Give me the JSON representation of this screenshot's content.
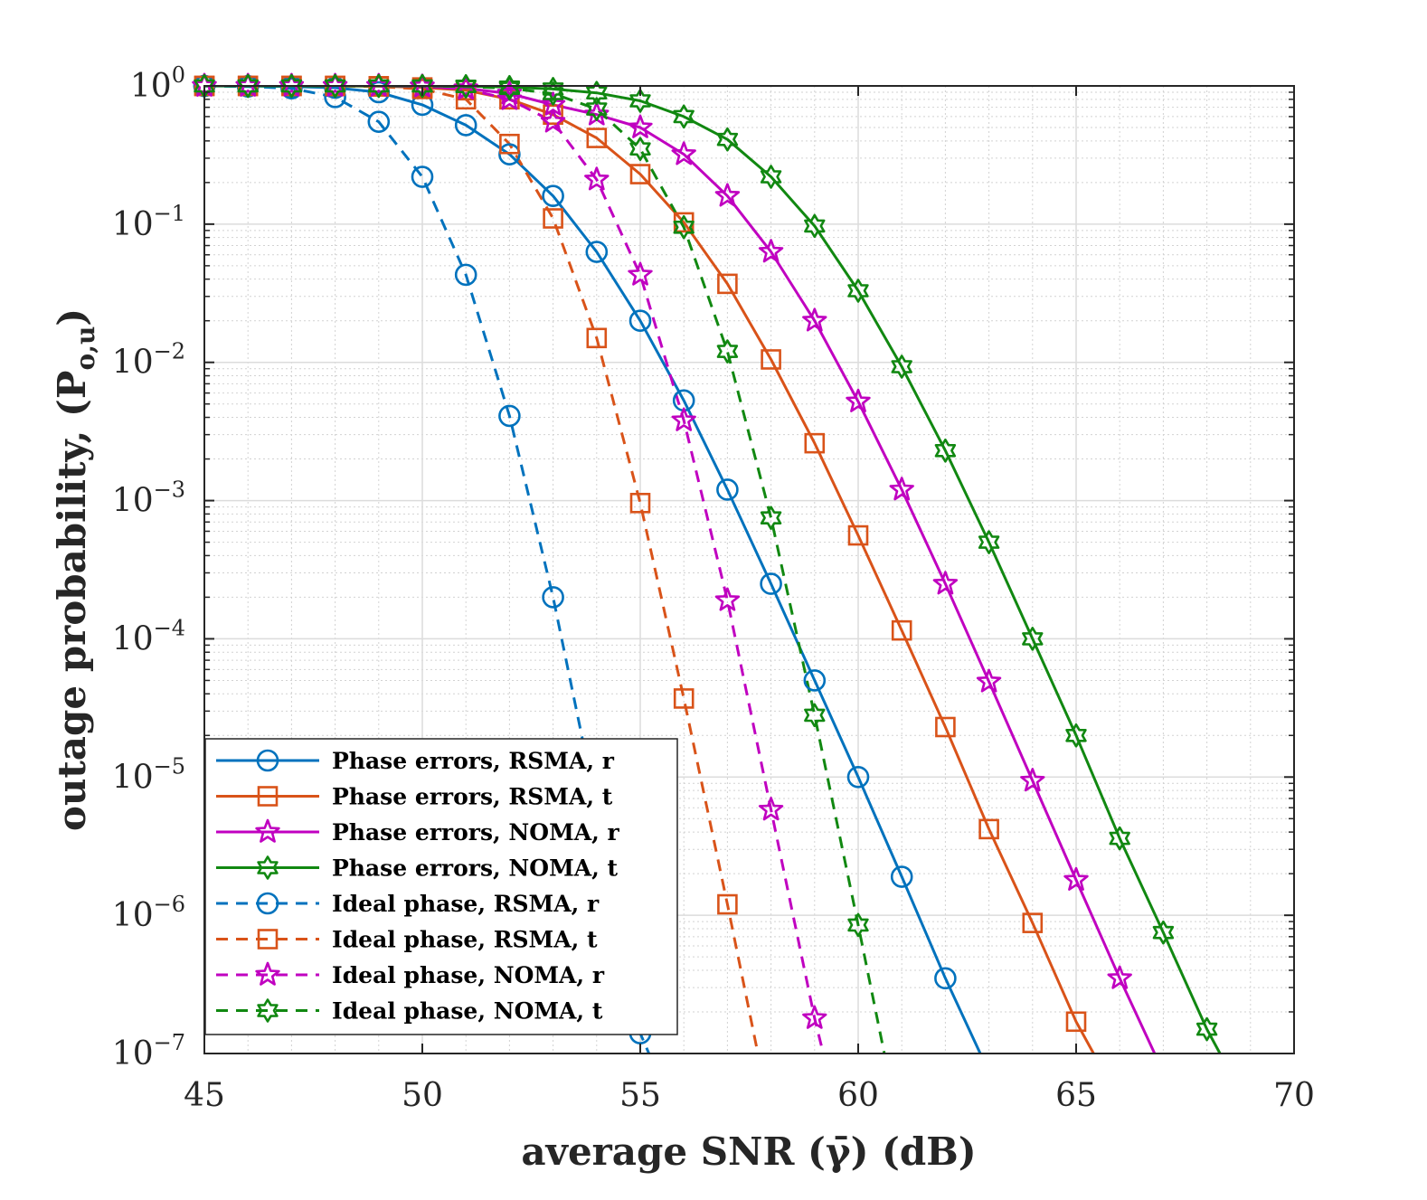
{
  "chart_data": {
    "type": "line",
    "xlabel": "average SNR (γ̄) (dB)",
    "ylabel": "outage probability, (P",
    "ylabel_sub": "o,u",
    "ylabel_close": ")",
    "xlim": [
      45,
      70
    ],
    "ylim": [
      1e-07,
      1
    ],
    "y_scale": "log",
    "grid": true,
    "minor_grid": true,
    "legend_position": "bottom-left",
    "x_ticks": [
      "45",
      "50",
      "55",
      "60",
      "65",
      "70"
    ],
    "y_ticks": [
      {
        "base": "10",
        "exp": "0"
      },
      {
        "base": "10",
        "exp": "−1"
      },
      {
        "base": "10",
        "exp": "−2"
      },
      {
        "base": "10",
        "exp": "−3"
      },
      {
        "base": "10",
        "exp": "−4"
      },
      {
        "base": "10",
        "exp": "−5"
      },
      {
        "base": "10",
        "exp": "−6"
      },
      {
        "base": "10",
        "exp": "−7"
      }
    ],
    "series": [
      {
        "name": "Phase errors, RSMA, r",
        "color": "#0072BD",
        "dash": "solid",
        "marker": "circle",
        "x": [
          45,
          46,
          47,
          48,
          49,
          50,
          51,
          52,
          53,
          54,
          55,
          56,
          57,
          58,
          59,
          60,
          61,
          62,
          62.8
        ],
        "y": [
          0.999,
          0.998,
          0.99,
          0.97,
          0.9,
          0.73,
          0.52,
          0.32,
          0.16,
          0.063,
          0.02,
          0.0053,
          0.0012,
          0.00025,
          5e-05,
          1e-05,
          1.9e-06,
          3.5e-07,
          1e-07
        ]
      },
      {
        "name": "Phase errors, RSMA, t",
        "color": "#D95319",
        "dash": "solid",
        "marker": "square",
        "x": [
          45,
          46,
          47,
          48,
          49,
          50,
          51,
          52,
          53,
          54,
          55,
          56,
          57,
          58,
          59,
          60,
          61,
          62,
          63,
          64,
          65,
          65.4
        ],
        "y": [
          1,
          1,
          1,
          0.999,
          0.995,
          0.975,
          0.93,
          0.8,
          0.62,
          0.42,
          0.23,
          0.103,
          0.037,
          0.0105,
          0.0026,
          0.00056,
          0.000115,
          2.3e-05,
          4.2e-06,
          8.8e-07,
          1.7e-07,
          1e-07
        ]
      },
      {
        "name": "Phase errors, NOMA, r",
        "color": "#C000C0",
        "dash": "solid",
        "marker": "star5",
        "x": [
          45,
          46,
          47,
          48,
          49,
          50,
          51,
          52,
          53,
          54,
          55,
          56,
          57,
          58,
          59,
          60,
          61,
          62,
          63,
          64,
          65,
          66,
          66.8
        ],
        "y": [
          1,
          1,
          1,
          1,
          0.999,
          0.99,
          0.96,
          0.88,
          0.73,
          0.62,
          0.5,
          0.32,
          0.16,
          0.063,
          0.02,
          0.0052,
          0.0012,
          0.00025,
          4.9e-05,
          9.4e-06,
          1.8e-06,
          3.5e-07,
          1e-07
        ]
      },
      {
        "name": "Phase errors, NOMA, t",
        "color": "#118811",
        "dash": "solid",
        "marker": "star6",
        "x": [
          45,
          46,
          47,
          48,
          49,
          50,
          51,
          52,
          53,
          54,
          55,
          56,
          57,
          58,
          59,
          60,
          61,
          62,
          63,
          64,
          65,
          66,
          67,
          68,
          68.3
        ],
        "y": [
          1,
          1,
          1,
          1,
          1,
          0.999,
          0.995,
          0.98,
          0.95,
          0.89,
          0.78,
          0.6,
          0.41,
          0.22,
          0.097,
          0.033,
          0.0093,
          0.0023,
          0.0005,
          0.0001,
          2e-05,
          3.6e-06,
          7.5e-07,
          1.5e-07,
          1e-07
        ]
      },
      {
        "name": "Ideal phase, RSMA, r",
        "color": "#0072BD",
        "dash": "dashed",
        "marker": "circle",
        "x": [
          45,
          46,
          47,
          48,
          49,
          50,
          51,
          52,
          53,
          54,
          55,
          55.2
        ],
        "y": [
          0.999,
          0.99,
          0.96,
          0.83,
          0.55,
          0.22,
          0.043,
          0.0041,
          0.0002,
          6e-06,
          1.4e-07,
          1e-07
        ]
      },
      {
        "name": "Ideal phase, RSMA, t",
        "color": "#D95319",
        "dash": "dashed",
        "marker": "square",
        "x": [
          45,
          46,
          47,
          48,
          49,
          50,
          51,
          52,
          53,
          54,
          55,
          56,
          57,
          57.7
        ],
        "y": [
          1,
          1,
          1,
          1,
          0.99,
          0.95,
          0.8,
          0.38,
          0.11,
          0.015,
          0.00096,
          3.7e-05,
          1.2e-06,
          1e-07
        ]
      },
      {
        "name": "Ideal phase, NOMA, r",
        "color": "#C000C0",
        "dash": "dashed",
        "marker": "star5",
        "x": [
          45,
          46,
          47,
          48,
          49,
          50,
          51,
          52,
          53,
          54,
          55,
          56,
          57,
          58,
          59,
          59.2
        ],
        "y": [
          1,
          1,
          1,
          1,
          1,
          0.99,
          0.95,
          0.8,
          0.55,
          0.21,
          0.043,
          0.0038,
          0.00019,
          5.8e-06,
          1.8e-07,
          1e-07
        ]
      },
      {
        "name": "Ideal phase, NOMA, t",
        "color": "#118811",
        "dash": "dashed",
        "marker": "star6",
        "x": [
          45,
          46,
          47,
          48,
          49,
          50,
          51,
          52,
          53,
          54,
          55,
          56,
          57,
          58,
          59,
          60,
          60.6
        ],
        "y": [
          1,
          1,
          1,
          1,
          1,
          0.999,
          0.99,
          0.96,
          0.88,
          0.68,
          0.35,
          0.095,
          0.012,
          0.00075,
          2.8e-05,
          8.5e-07,
          1e-07
        ]
      }
    ]
  }
}
